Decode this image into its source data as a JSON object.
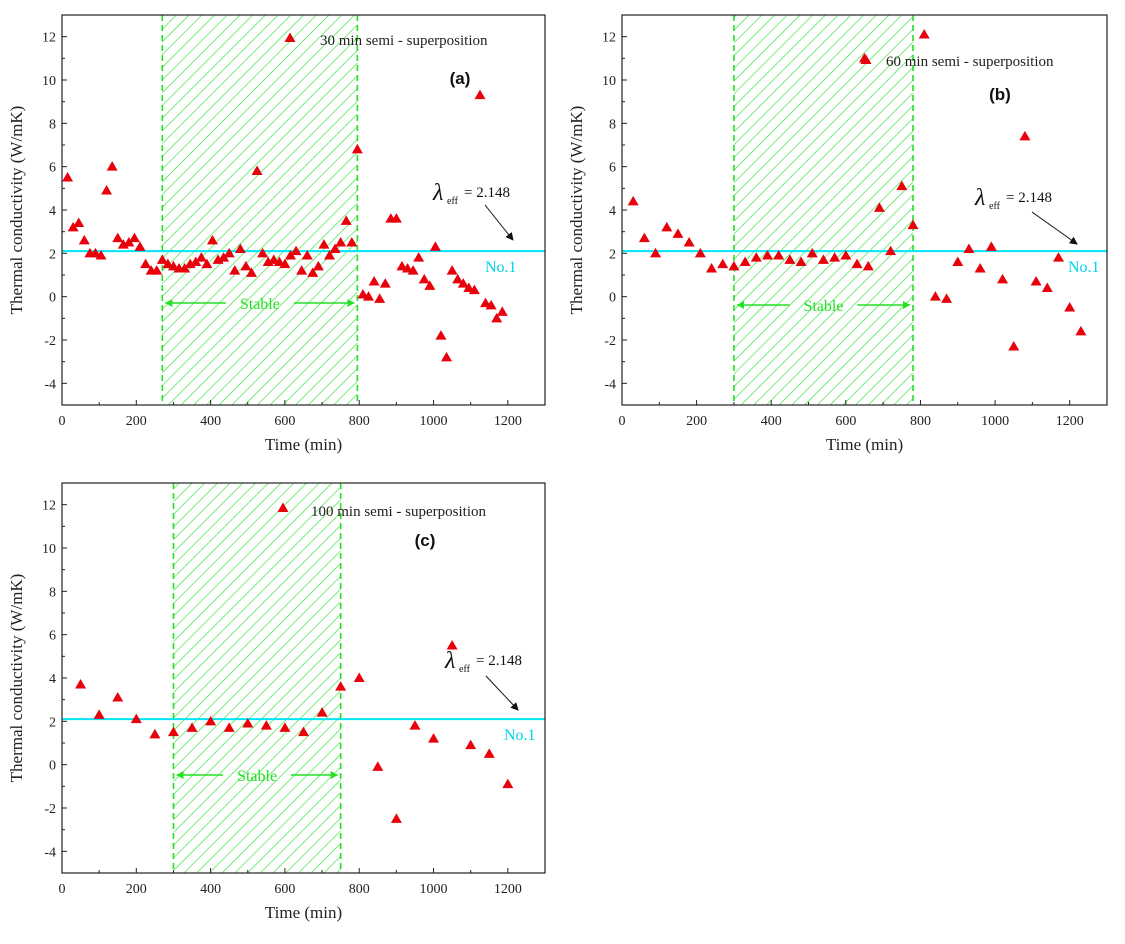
{
  "colors": {
    "marker": "#e8000b",
    "reference_line": "#00e5f5",
    "stable_region": "#22e022",
    "axis": "#222222"
  },
  "chart_data": [
    {
      "type": "scatter",
      "panel_label": "(a)",
      "legend": "30 min semi - superposition",
      "xlabel": "Time (min)",
      "ylabel": "Thermal conductivity (W/mK)",
      "xlim": [
        0,
        1300
      ],
      "ylim": [
        -5,
        13
      ],
      "xticks": [
        0,
        200,
        400,
        600,
        800,
        1000,
        1200
      ],
      "yticks": [
        -4,
        -2,
        0,
        2,
        4,
        6,
        8,
        10,
        12
      ],
      "reference_line": {
        "y": 2.1,
        "label": "No.1",
        "lambda_symbol": "λ",
        "lambda_subscript": "eff",
        "lambda_text": "= 2.148"
      },
      "stable_region": {
        "x": [
          270,
          795
        ],
        "label": "Stable"
      },
      "points": [
        [
          15,
          5.5
        ],
        [
          30,
          3.2
        ],
        [
          45,
          3.4
        ],
        [
          60,
          2.6
        ],
        [
          75,
          2.0
        ],
        [
          90,
          2.0
        ],
        [
          105,
          1.9
        ],
        [
          120,
          4.9
        ],
        [
          135,
          6.0
        ],
        [
          150,
          2.7
        ],
        [
          165,
          2.4
        ],
        [
          180,
          2.5
        ],
        [
          195,
          2.7
        ],
        [
          210,
          2.3
        ],
        [
          225,
          1.5
        ],
        [
          240,
          1.2
        ],
        [
          255,
          1.2
        ],
        [
          270,
          1.7
        ],
        [
          285,
          1.5
        ],
        [
          300,
          1.4
        ],
        [
          315,
          1.3
        ],
        [
          330,
          1.3
        ],
        [
          345,
          1.5
        ],
        [
          360,
          1.6
        ],
        [
          375,
          1.8
        ],
        [
          390,
          1.5
        ],
        [
          405,
          2.6
        ],
        [
          420,
          1.7
        ],
        [
          435,
          1.8
        ],
        [
          450,
          2.0
        ],
        [
          465,
          1.2
        ],
        [
          480,
          2.2
        ],
        [
          495,
          1.4
        ],
        [
          510,
          1.1
        ],
        [
          525,
          5.8
        ],
        [
          540,
          2.0
        ],
        [
          555,
          1.6
        ],
        [
          570,
          1.7
        ],
        [
          585,
          1.6
        ],
        [
          600,
          1.5
        ],
        [
          615,
          1.9
        ],
        [
          630,
          2.1
        ],
        [
          645,
          1.2
        ],
        [
          660,
          1.9
        ],
        [
          675,
          1.1
        ],
        [
          690,
          1.4
        ],
        [
          705,
          2.4
        ],
        [
          720,
          1.9
        ],
        [
          735,
          2.2
        ],
        [
          750,
          2.5
        ],
        [
          765,
          3.5
        ],
        [
          780,
          2.5
        ],
        [
          795,
          6.8
        ],
        [
          810,
          0.1
        ],
        [
          825,
          0.0
        ],
        [
          840,
          0.7
        ],
        [
          855,
          -0.1
        ],
        [
          870,
          0.6
        ],
        [
          885,
          3.6
        ],
        [
          900,
          3.6
        ],
        [
          915,
          1.4
        ],
        [
          930,
          1.3
        ],
        [
          945,
          1.2
        ],
        [
          960,
          1.8
        ],
        [
          975,
          0.8
        ],
        [
          990,
          0.5
        ],
        [
          1005,
          2.3
        ],
        [
          1020,
          -1.8
        ],
        [
          1035,
          -2.8
        ],
        [
          1050,
          1.2
        ],
        [
          1065,
          0.8
        ],
        [
          1080,
          0.6
        ],
        [
          1095,
          0.4
        ],
        [
          1110,
          0.3
        ],
        [
          1125,
          9.3
        ],
        [
          1140,
          -0.3
        ],
        [
          1155,
          -0.4
        ],
        [
          1170,
          -1.0
        ],
        [
          1185,
          -0.7
        ]
      ]
    },
    {
      "type": "scatter",
      "panel_label": "(b)",
      "legend": "60 min semi - superposition",
      "xlabel": "Time (min)",
      "ylabel": "Thermal conductivity (W/mK)",
      "xlim": [
        0,
        1300
      ],
      "ylim": [
        -5,
        13
      ],
      "xticks": [
        0,
        200,
        400,
        600,
        800,
        1000,
        1200
      ],
      "yticks": [
        -4,
        -2,
        0,
        2,
        4,
        6,
        8,
        10,
        12
      ],
      "reference_line": {
        "y": 2.1,
        "label": "No.1",
        "lambda_symbol": "λ",
        "lambda_subscript": "eff",
        "lambda_text": "= 2.148"
      },
      "stable_region": {
        "x": [
          300,
          780
        ],
        "label": "Stable"
      },
      "points": [
        [
          30,
          4.4
        ],
        [
          60,
          2.7
        ],
        [
          90,
          2.0
        ],
        [
          120,
          3.2
        ],
        [
          150,
          2.9
        ],
        [
          180,
          2.5
        ],
        [
          210,
          2.0
        ],
        [
          240,
          1.3
        ],
        [
          270,
          1.5
        ],
        [
          300,
          1.4
        ],
        [
          330,
          1.6
        ],
        [
          360,
          1.8
        ],
        [
          390,
          1.9
        ],
        [
          420,
          1.9
        ],
        [
          450,
          1.7
        ],
        [
          480,
          1.6
        ],
        [
          510,
          2.0
        ],
        [
          540,
          1.7
        ],
        [
          570,
          1.8
        ],
        [
          600,
          1.9
        ],
        [
          630,
          1.5
        ],
        [
          650,
          11.0
        ],
        [
          660,
          1.4
        ],
        [
          690,
          4.1
        ],
        [
          720,
          2.1
        ],
        [
          750,
          5.1
        ],
        [
          780,
          3.3
        ],
        [
          810,
          12.1
        ],
        [
          840,
          0.0
        ],
        [
          870,
          -0.1
        ],
        [
          900,
          1.6
        ],
        [
          930,
          2.2
        ],
        [
          960,
          1.3
        ],
        [
          990,
          2.3
        ],
        [
          1020,
          0.8
        ],
        [
          1050,
          -2.3
        ],
        [
          1080,
          7.4
        ],
        [
          1110,
          0.7
        ],
        [
          1140,
          0.4
        ],
        [
          1170,
          1.8
        ],
        [
          1200,
          -0.5
        ],
        [
          1230,
          -1.6
        ]
      ]
    },
    {
      "type": "scatter",
      "panel_label": "(c)",
      "legend": "100 min semi - superposition",
      "xlabel": "Time (min)",
      "ylabel": "Thermal conductivity (W/mK)",
      "xlim": [
        0,
        1300
      ],
      "ylim": [
        -5,
        13
      ],
      "xticks": [
        0,
        200,
        400,
        600,
        800,
        1000,
        1200
      ],
      "yticks": [
        -4,
        -2,
        0,
        2,
        4,
        6,
        8,
        10,
        12
      ],
      "reference_line": {
        "y": 2.1,
        "label": "No.1",
        "lambda_symbol": "λ",
        "lambda_subscript": "eff",
        "lambda_text": "= 2.148"
      },
      "stable_region": {
        "x": [
          300,
          750
        ],
        "label": "Stable"
      },
      "points": [
        [
          50,
          3.7
        ],
        [
          100,
          2.3
        ],
        [
          150,
          3.1
        ],
        [
          200,
          2.1
        ],
        [
          250,
          1.4
        ],
        [
          300,
          1.5
        ],
        [
          350,
          1.7
        ],
        [
          400,
          2.0
        ],
        [
          450,
          1.7
        ],
        [
          500,
          1.9
        ],
        [
          550,
          1.8
        ],
        [
          600,
          1.7
        ],
        [
          650,
          1.5
        ],
        [
          700,
          2.4
        ],
        [
          750,
          3.6
        ],
        [
          800,
          4.0
        ],
        [
          850,
          -0.1
        ],
        [
          900,
          -2.5
        ],
        [
          950,
          1.8
        ],
        [
          1000,
          1.2
        ],
        [
          1050,
          5.5
        ],
        [
          1100,
          0.9
        ],
        [
          1150,
          0.5
        ],
        [
          1200,
          -0.9
        ]
      ]
    }
  ]
}
